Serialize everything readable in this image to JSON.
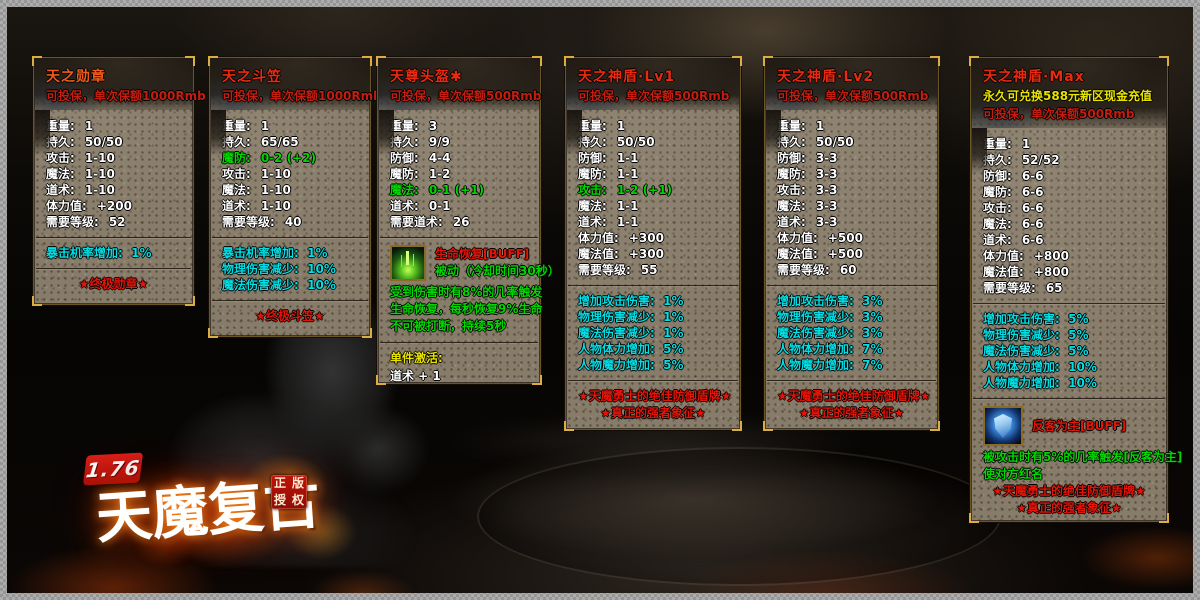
{
  "logo": {
    "version": "1.76",
    "title": "天魔复古",
    "seal_chars": [
      "正",
      "版",
      "授",
      "权"
    ]
  },
  "colors": {
    "title_red": "#ea2a10",
    "title_orange": "#ee5c1c",
    "insure_red": "#c41e10",
    "special_yellow": "#e8e400",
    "bonus_cyan": "#00dfe6",
    "upgrade_green": "#00d800",
    "footer_red": "#e51408",
    "stat_white": "#ffffff"
  },
  "panels": [
    {
      "title": "天之勋章",
      "title_style": "orange",
      "header_lines": [
        {
          "text": "可投保，单次保额1000Rmb",
          "style": "insure"
        }
      ],
      "sections": [
        {
          "kind": "stats",
          "rows": [
            {
              "label": "重量:",
              "value": "1"
            },
            {
              "label": "持久:",
              "value": "50/50"
            },
            {
              "label": "攻击:",
              "value": "1-10"
            },
            {
              "label": "魔法:",
              "value": "1-10"
            },
            {
              "label": "道术:",
              "value": "1-10"
            },
            {
              "label": "体力值:",
              "value": "+200"
            },
            {
              "label": "需要等级:",
              "value": "52"
            }
          ]
        },
        {
          "kind": "lines",
          "divider": true,
          "style": "cyan",
          "items": [
            "暴击机率增加:  1%"
          ]
        },
        {
          "kind": "footer",
          "divider": true,
          "items": [
            "★终极勋章★"
          ]
        }
      ]
    },
    {
      "title": "天之斗笠",
      "title_style": "red",
      "header_lines": [
        {
          "text": "可投保，单次保额1000Rmb",
          "style": "insure"
        }
      ],
      "sections": [
        {
          "kind": "stats",
          "rows": [
            {
              "label": "重量:",
              "value": "1"
            },
            {
              "label": "持久:",
              "value": "65/65"
            },
            {
              "label": "魔防:",
              "value": "0-2 (+2)",
              "style": "green"
            },
            {
              "label": "攻击:",
              "value": "1-10"
            },
            {
              "label": "魔法:",
              "value": "1-10"
            },
            {
              "label": "道术:",
              "value": "1-10"
            },
            {
              "label": "需要等级:",
              "value": "40"
            }
          ]
        },
        {
          "kind": "lines",
          "divider": true,
          "style": "cyan",
          "items": [
            "暴击机率增加:  1%",
            "物理伤害减少:  10%",
            "魔法伤害减少:  10%"
          ]
        },
        {
          "kind": "footer",
          "divider": true,
          "items": [
            "★终极斗笠★"
          ]
        }
      ]
    },
    {
      "title": "天尊头盔✱",
      "title_style": "red",
      "header_lines": [
        {
          "text": "可投保，单次保额500Rmb",
          "style": "insure"
        }
      ],
      "sections": [
        {
          "kind": "stats",
          "rows": [
            {
              "label": "重量:",
              "value": "3"
            },
            {
              "label": "持久:",
              "value": "9/9"
            },
            {
              "label": "防御:",
              "value": "4-4"
            },
            {
              "label": "魔防:",
              "value": "1-2"
            },
            {
              "label": "魔法:",
              "value": "0-1 (+1)",
              "style": "green"
            },
            {
              "label": "道术:",
              "value": "0-1"
            },
            {
              "label": "需要道术:",
              "value": "26"
            }
          ]
        },
        {
          "kind": "buff",
          "divider": true,
          "icon": "life-recovery-buff-icon",
          "name": "生命恢复[BUFF]",
          "sub": "被动（冷却时间30秒）",
          "lines": [
            "受到伤害时有8%的几率触发",
            "生命恢复，每秒恢复9%生命",
            "不可被打断，持续5秒"
          ]
        },
        {
          "kind": "activate",
          "divider": true,
          "label": "单件激活:",
          "lines": [
            "道术 + 1"
          ]
        }
      ]
    },
    {
      "title": "天之神盾·Lv1",
      "title_style": "red",
      "header_lines": [
        {
          "text": "可投保，单次保额500Rmb",
          "style": "insure"
        }
      ],
      "sections": [
        {
          "kind": "stats",
          "rows": [
            {
              "label": "重量:",
              "value": "1"
            },
            {
              "label": "持久:",
              "value": "50/50"
            },
            {
              "label": "防御:",
              "value": "1-1"
            },
            {
              "label": "魔防:",
              "value": "1-1"
            },
            {
              "label": "攻击:",
              "value": "1-2 (+1)",
              "style": "green"
            },
            {
              "label": "魔法:",
              "value": "1-1"
            },
            {
              "label": "道术:",
              "value": "1-1"
            },
            {
              "label": "体力值:",
              "value": "+300"
            },
            {
              "label": "魔法值:",
              "value": "+300"
            },
            {
              "label": "需要等级:",
              "value": "55"
            }
          ]
        },
        {
          "kind": "lines",
          "divider": true,
          "style": "cyan",
          "items": [
            "增加攻击伤害:  1%",
            "物理伤害减少:  1%",
            "魔法伤害减少:  1%",
            "人物体力增加:  5%",
            "人物魔力增加:  5%"
          ]
        },
        {
          "kind": "footer",
          "divider": true,
          "items": [
            "★天魔勇士的绝佳防御盾牌★",
            "★真正的强者象征★"
          ]
        }
      ]
    },
    {
      "title": "天之神盾·Lv2",
      "title_style": "red",
      "header_lines": [
        {
          "text": "可投保，单次保额500Rmb",
          "style": "insure"
        }
      ],
      "sections": [
        {
          "kind": "stats",
          "rows": [
            {
              "label": "重量:",
              "value": "1"
            },
            {
              "label": "持久:",
              "value": "50/50"
            },
            {
              "label": "防御:",
              "value": "3-3"
            },
            {
              "label": "魔防:",
              "value": "3-3"
            },
            {
              "label": "攻击:",
              "value": "3-3"
            },
            {
              "label": "魔法:",
              "value": "3-3"
            },
            {
              "label": "道术:",
              "value": "3-3"
            },
            {
              "label": "体力值:",
              "value": "+500"
            },
            {
              "label": "魔法值:",
              "value": "+500"
            },
            {
              "label": "需要等级:",
              "value": "60"
            }
          ]
        },
        {
          "kind": "lines",
          "divider": true,
          "style": "cyan",
          "items": [
            "增加攻击伤害:  3%",
            "物理伤害减少:  3%",
            "魔法伤害减少:  3%",
            "人物体力增加:  7%",
            "人物魔力增加:  7%"
          ]
        },
        {
          "kind": "footer",
          "divider": true,
          "items": [
            "★天魔勇士的绝佳防御盾牌★",
            "★真正的强者象征★"
          ]
        }
      ]
    },
    {
      "title": "天之神盾·Max",
      "title_style": "red",
      "header_lines": [
        {
          "text": "永久可兑换588元新区现金充值",
          "style": "special"
        },
        {
          "text": "可投保，单次保额500Rmb",
          "style": "insure"
        }
      ],
      "sections": [
        {
          "kind": "stats",
          "rows": [
            {
              "label": "重量:",
              "value": "1"
            },
            {
              "label": "持久:",
              "value": "52/52"
            },
            {
              "label": "防御:",
              "value": "6-6"
            },
            {
              "label": "魔防:",
              "value": "6-6"
            },
            {
              "label": "攻击:",
              "value": "6-6"
            },
            {
              "label": "魔法:",
              "value": "6-6"
            },
            {
              "label": "道术:",
              "value": "6-6"
            },
            {
              "label": "体力值:",
              "value": "+800"
            },
            {
              "label": "魔法值:",
              "value": "+800"
            },
            {
              "label": "需要等级:",
              "value": "65"
            }
          ]
        },
        {
          "kind": "lines",
          "divider": true,
          "style": "cyan",
          "items": [
            "增加攻击伤害:  5%",
            "物理伤害减少:  5%",
            "魔法伤害减少:  5%",
            "人物体力增加:  10%",
            "人物魔力增加:  10%"
          ]
        },
        {
          "kind": "buff",
          "divider": true,
          "icon": "counter-attack-buff-icon",
          "name": "反客为主[BUFF]",
          "lines": [
            "被攻击时有5%的几率触发[反客为主]",
            "使对方红名"
          ]
        },
        {
          "kind": "footer",
          "divider": false,
          "items": [
            "★天魔勇士的绝佳防御盾牌★",
            "★真正的强者象征★"
          ]
        }
      ]
    }
  ]
}
